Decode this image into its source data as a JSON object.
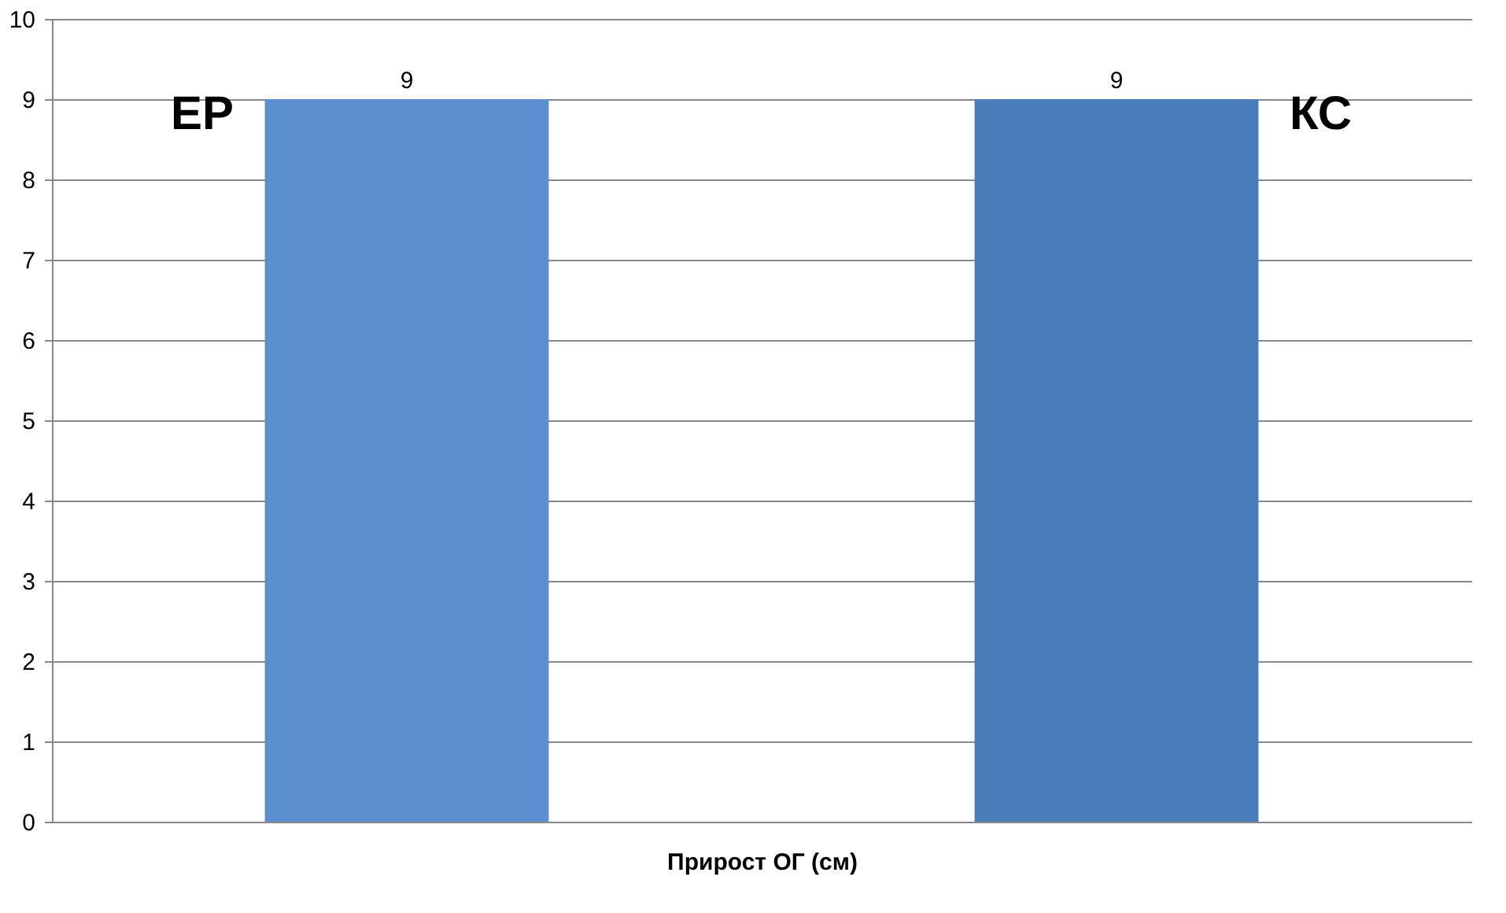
{
  "chart_data": {
    "type": "bar",
    "xlabel": "Прирост ОГ (см)",
    "categories": [
      null,
      null
    ],
    "series": [
      {
        "name": "ЕР",
        "color": "#5b8fd0",
        "values": [
          9,
          null
        ]
      },
      {
        "name": "КС",
        "color": "#4a7ebb",
        "values": [
          null,
          9
        ]
      }
    ],
    "ylim": [
      0,
      10
    ],
    "yticks": [
      0,
      1,
      2,
      3,
      4,
      5,
      6,
      7,
      8,
      9,
      10
    ],
    "grid": "y",
    "data_labels": true,
    "tick_labels": "y"
  }
}
